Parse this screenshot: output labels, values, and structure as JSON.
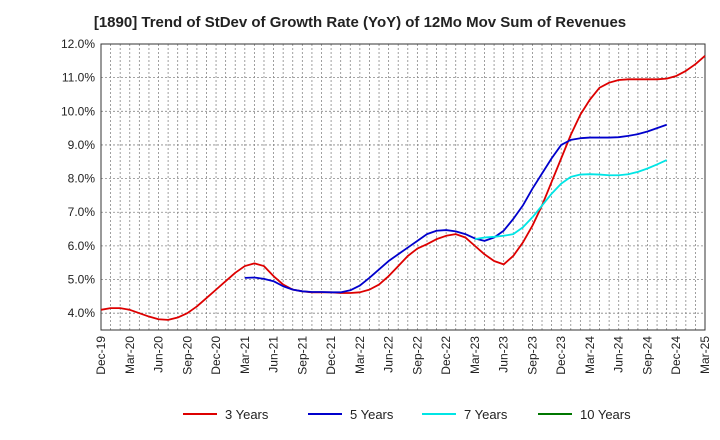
{
  "chart_data": {
    "type": "line",
    "title": "[1890]  Trend of StDev of Growth Rate (YoY) of 12Mo Mov Sum of Revenues",
    "xlabel": "",
    "ylabel": "",
    "ylim": [
      3.5,
      12.0
    ],
    "yticks": [
      4.0,
      5.0,
      6.0,
      7.0,
      8.0,
      9.0,
      10.0,
      11.0,
      12.0
    ],
    "ytick_labels": [
      "4.0%",
      "5.0%",
      "6.0%",
      "7.0%",
      "8.0%",
      "9.0%",
      "10.0%",
      "11.0%",
      "12.0%"
    ],
    "x_labels": [
      "Dec-19",
      "Mar-20",
      "Jun-20",
      "Sep-20",
      "Dec-20",
      "Mar-21",
      "Jun-21",
      "Sep-21",
      "Dec-21",
      "Mar-22",
      "Jun-22",
      "Sep-22",
      "Dec-22",
      "Mar-23",
      "Jun-23",
      "Sep-23",
      "Dec-23",
      "Mar-24",
      "Jun-24",
      "Sep-24",
      "Dec-24",
      "Mar-25"
    ],
    "x_start": "Dec-19",
    "grid": true,
    "legend_position": "bottom",
    "series": [
      {
        "name": "3 Years",
        "color": "#dd0000",
        "start_index": 0,
        "values": [
          4.1,
          4.15,
          4.15,
          4.1,
          4.0,
          3.9,
          3.82,
          3.8,
          3.87,
          4.0,
          4.2,
          4.45,
          4.7,
          4.95,
          5.2,
          5.4,
          5.48,
          5.4,
          5.1,
          4.85,
          4.7,
          4.65,
          4.62,
          4.62,
          4.62,
          4.6,
          4.6,
          4.62,
          4.7,
          4.85,
          5.1,
          5.4,
          5.7,
          5.92,
          6.05,
          6.2,
          6.3,
          6.35,
          6.25,
          6.0,
          5.75,
          5.55,
          5.45,
          5.7,
          6.1,
          6.6,
          7.2,
          7.9,
          8.6,
          9.3,
          9.9,
          10.35,
          10.7,
          10.85,
          10.93,
          10.95,
          10.95,
          10.95,
          10.95,
          10.97,
          11.05,
          11.2,
          11.4,
          11.65
        ]
      },
      {
        "name": "5 Years",
        "color": "#0000cc",
        "start_index": 15,
        "values": [
          5.05,
          5.06,
          5.02,
          4.95,
          4.8,
          4.7,
          4.65,
          4.63,
          4.63,
          4.62,
          4.62,
          4.68,
          4.82,
          5.05,
          5.3,
          5.55,
          5.75,
          5.95,
          6.15,
          6.35,
          6.45,
          6.47,
          6.43,
          6.35,
          6.22,
          6.15,
          6.25,
          6.45,
          6.8,
          7.2,
          7.7,
          8.15,
          8.6,
          9.0,
          9.15,
          9.2,
          9.22,
          9.22,
          9.22,
          9.23,
          9.27,
          9.32,
          9.4,
          9.5,
          9.6
        ]
      },
      {
        "name": "7 Years",
        "color": "#00e5e5",
        "start_index": 39,
        "values": [
          6.2,
          6.25,
          6.27,
          6.3,
          6.35,
          6.55,
          6.85,
          7.2,
          7.55,
          7.85,
          8.05,
          8.12,
          8.13,
          8.12,
          8.1,
          8.1,
          8.13,
          8.2,
          8.3,
          8.42,
          8.55
        ]
      },
      {
        "name": "10 Years",
        "color": "#007700",
        "start_index": 0,
        "values": []
      }
    ]
  }
}
